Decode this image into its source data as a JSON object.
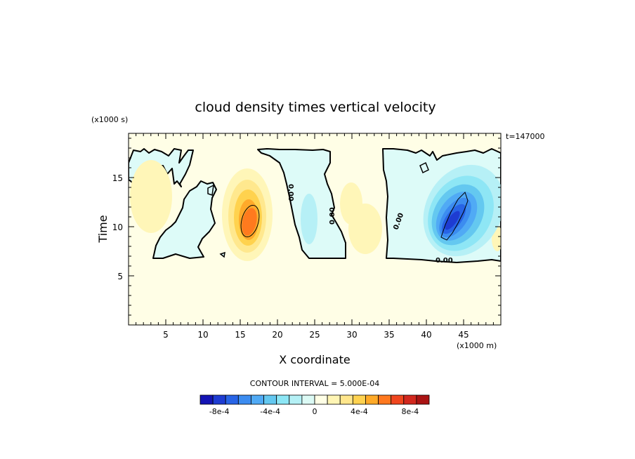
{
  "chart_data": {
    "type": "heatmap",
    "title": "cloud density times vertical velocity",
    "xlabel": "X coordinate",
    "ylabel": "Time",
    "x_unit": "(x1000 m)",
    "y_unit": "(x1000 s)",
    "time_stamp": "t=147000",
    "xlim": [
      0,
      50
    ],
    "ylim": [
      0,
      19.5
    ],
    "x_ticks": [
      "5",
      "10",
      "15",
      "20",
      "25",
      "30",
      "35",
      "40",
      "45"
    ],
    "y_ticks": [
      "5",
      "10",
      "15"
    ],
    "contour_interval_text": "CONTOUR INTERVAL = 5.000E-04",
    "contour_label": "0.00",
    "colorbar": {
      "colors": [
        "#1414b4",
        "#1e3cd2",
        "#2864e6",
        "#3c8cf0",
        "#50aaf5",
        "#64c8f0",
        "#8ce6f5",
        "#b4f0f5",
        "#dcfaf5",
        "#ffffe6",
        "#fff5b4",
        "#ffe68c",
        "#ffd250",
        "#ffaa28",
        "#ff781e",
        "#f0461e",
        "#d2281e",
        "#aa1414"
      ],
      "labels": [
        "-8e-4",
        "-4e-4",
        "0",
        "4e-4",
        "8e-4"
      ]
    },
    "features": [
      {
        "kind": "positive",
        "x": 16.0,
        "y": 10.7,
        "peak": 0.0006
      },
      {
        "kind": "negative",
        "x": 43.7,
        "y": 11.0,
        "peak": -0.0009
      },
      {
        "kind": "positive",
        "x": 2.5,
        "y": 12.5,
        "peak": 0.0001
      },
      {
        "kind": "positive",
        "x": 31.5,
        "y": 10.0,
        "peak": 0.00015
      },
      {
        "kind": "negative",
        "x": 24.5,
        "y": 11.5,
        "peak": -0.0001
      }
    ]
  }
}
